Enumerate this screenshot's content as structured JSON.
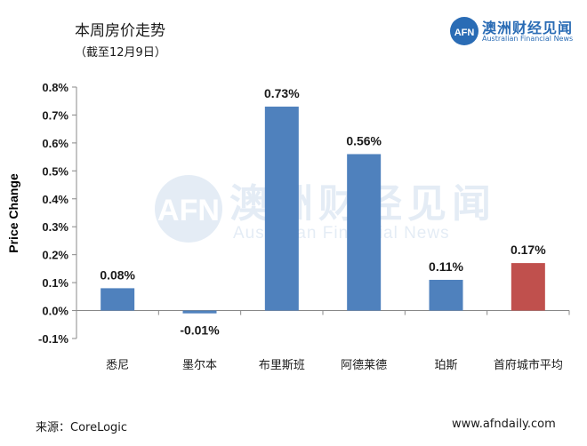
{
  "header": {
    "title": "本周房价走势",
    "subtitle": "（截至12月9日）"
  },
  "logo": {
    "cn": "澳洲财经见闻",
    "en": "Australian Financial News",
    "mark": "AFN",
    "color": "#2a6cb5"
  },
  "footer": {
    "source": "来源：CoreLogic",
    "site": "www.afndaily.com"
  },
  "chart_data": {
    "type": "bar",
    "ylabel": "Price Change",
    "categories": [
      "悉尼",
      "墨尔本",
      "布里斯班",
      "阿德莱德",
      "珀斯",
      "首府城市平均"
    ],
    "values": [
      0.08,
      -0.01,
      0.73,
      0.56,
      0.11,
      0.17
    ],
    "data_labels": [
      "0.08%",
      "-0.01%",
      "0.73%",
      "0.56%",
      "0.11%",
      "0.17%"
    ],
    "colors": [
      "#4f81bd",
      "#4f81bd",
      "#4f81bd",
      "#4f81bd",
      "#4f81bd",
      "#c0504d"
    ],
    "ylim": [
      -0.1,
      0.8
    ],
    "yticks": [
      0.8,
      0.7,
      0.6,
      0.5,
      0.4,
      0.3,
      0.2,
      0.1,
      0.0,
      -0.1
    ],
    "ytick_labels": [
      "0.8%",
      "0.7%",
      "0.6%",
      "0.5%",
      "0.4%",
      "0.3%",
      "0.2%",
      "0.1%",
      "0.0%",
      "-0.1%"
    ],
    "grid": false,
    "legend": "none"
  }
}
